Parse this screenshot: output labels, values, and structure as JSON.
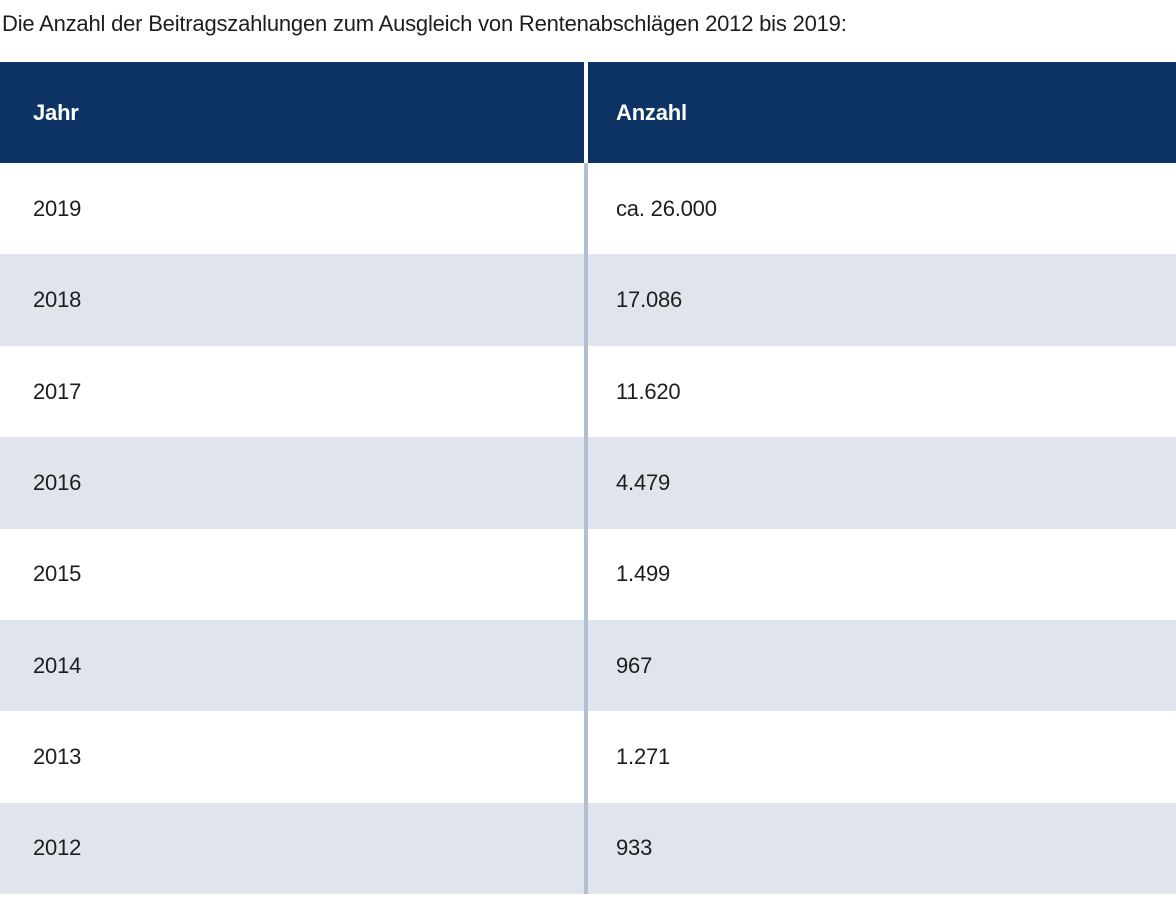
{
  "title": "Die Anzahl der Beitragszahlungen zum Ausgleich von Rentenabschlägen 2012 bis 2019:",
  "table": {
    "columns": {
      "jahr": "Jahr",
      "anzahl": "Anzahl"
    },
    "rows": [
      {
        "jahr": "2019",
        "anzahl": "ca. 26.000"
      },
      {
        "jahr": "2018",
        "anzahl": "17.086"
      },
      {
        "jahr": "2017",
        "anzahl": "11.620"
      },
      {
        "jahr": "2016",
        "anzahl": "4.479"
      },
      {
        "jahr": "2015",
        "anzahl": "1.499"
      },
      {
        "jahr": "2014",
        "anzahl": "967"
      },
      {
        "jahr": "2013",
        "anzahl": "1.271"
      },
      {
        "jahr": "2012",
        "anzahl": "933"
      }
    ]
  },
  "chart_data": {
    "type": "table",
    "title": "Die Anzahl der Beitragszahlungen zum Ausgleich von Rentenabschlägen 2012 bis 2019:",
    "columns": [
      "Jahr",
      "Anzahl"
    ],
    "categories": [
      "2019",
      "2018",
      "2017",
      "2016",
      "2015",
      "2014",
      "2013",
      "2012"
    ],
    "values_text": [
      "ca. 26.000",
      "17.086",
      "11.620",
      "4.479",
      "1.499",
      "967",
      "1.271",
      "933"
    ],
    "values_numeric": [
      26000,
      17086,
      11620,
      4479,
      1499,
      967,
      1271,
      933
    ]
  },
  "colors": {
    "header_bg": "#0d3364",
    "header_text": "#ffffff",
    "row_alt_bg": "#e0e5ed",
    "divider": "#b0c0d3",
    "text": "#1d1d1b"
  }
}
